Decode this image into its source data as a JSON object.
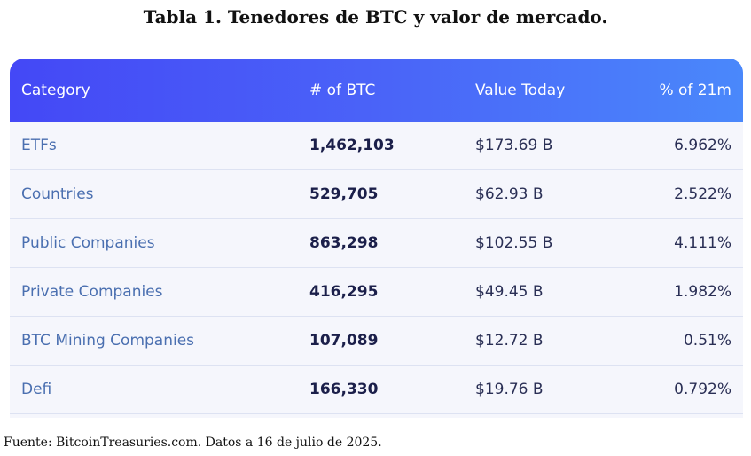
{
  "title": "Tabla 1. Tenedores de BTC y valor de mercado.",
  "table": {
    "headers": [
      "Category",
      "# of BTC",
      "Value Today",
      "% of 21m"
    ],
    "rows": [
      {
        "category": "ETFs",
        "btc": "1,462,103",
        "value": "$173.69 B",
        "pct": "6.962%"
      },
      {
        "category": "Countries",
        "btc": "529,705",
        "value": "$62.93 B",
        "pct": "2.522%"
      },
      {
        "category": "Public Companies",
        "btc": "863,298",
        "value": "$102.55 B",
        "pct": "4.111%"
      },
      {
        "category": "Private Companies",
        "btc": "416,295",
        "value": "$49.45 B",
        "pct": "1.982%"
      },
      {
        "category": "BTC Mining Companies",
        "btc": "107,089",
        "value": "$12.72 B",
        "pct": "0.51%"
      },
      {
        "category": "Defi",
        "btc": "166,330",
        "value": "$19.76 B",
        "pct": "0.792%"
      }
    ]
  },
  "source": "Fuente: BitcoinTreasuries.com. Datos a 16 de julio de 2025.",
  "colors": {
    "header_gradient_start": "#4448f6",
    "header_gradient_end": "#4a88fb",
    "row_background": "#f5f6fc",
    "category_text": "#4a6fb0"
  }
}
